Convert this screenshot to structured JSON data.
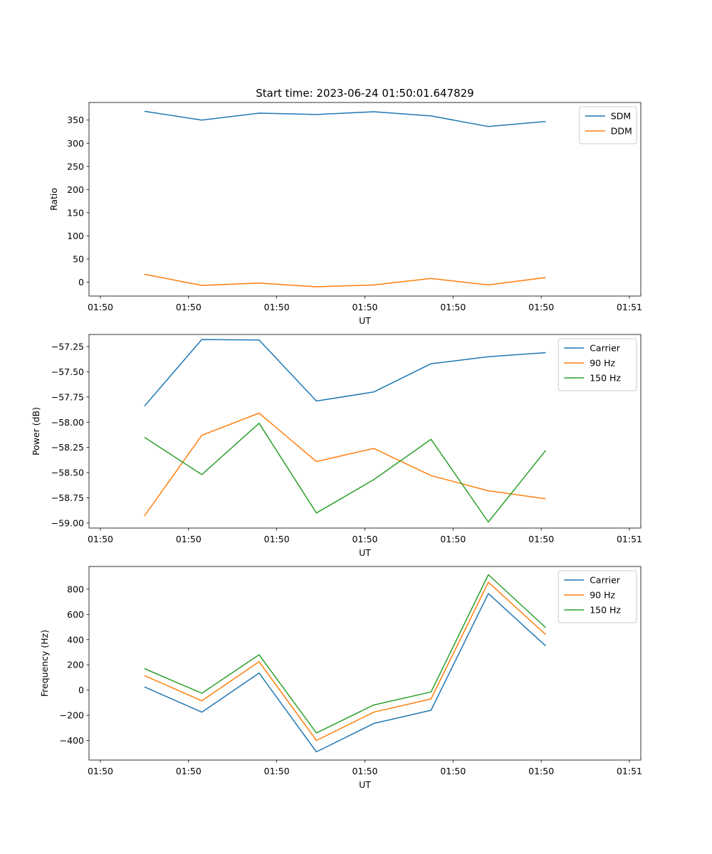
{
  "figure_title": "Start time: 2023-06-24 01:50:01.647829",
  "chart_data": [
    {
      "type": "line",
      "xlabel": "UT",
      "ylabel": "Ratio",
      "xticklabels": [
        "01:50",
        "01:50",
        "01:50",
        "01:50",
        "01:50",
        "01:50",
        "01:51"
      ],
      "xlim": [
        0,
        6
      ],
      "x": [
        0.5,
        1.15,
        1.8,
        2.45,
        3.1,
        3.75,
        4.4,
        5.05
      ],
      "ylim": [
        -30,
        388
      ],
      "yticks": [
        0,
        50,
        100,
        150,
        200,
        250,
        300,
        350
      ],
      "legend_position": "top-right",
      "series": [
        {
          "name": "SDM",
          "color": "#1f77b4",
          "values": [
            369,
            350,
            365,
            362,
            368,
            359,
            336,
            347
          ]
        },
        {
          "name": "DDM",
          "color": "#ff7f0e",
          "values": [
            17,
            -7,
            -2,
            -10,
            -6,
            8,
            -6,
            10
          ]
        }
      ]
    },
    {
      "type": "line",
      "xlabel": "UT",
      "ylabel": "Power (dB)",
      "xticklabels": [
        "01:50",
        "01:50",
        "01:50",
        "01:50",
        "01:50",
        "01:50",
        "01:51"
      ],
      "xlim": [
        0,
        6
      ],
      "x": [
        0.5,
        1.15,
        1.8,
        2.45,
        3.1,
        3.75,
        4.4,
        5.05
      ],
      "ylim": [
        -59.05,
        -57.13
      ],
      "yticks": [
        -59.0,
        -58.75,
        -58.5,
        -58.25,
        -58.0,
        -57.75,
        -57.5,
        -57.25
      ],
      "ytick_decimals": 2,
      "legend_position": "top-right",
      "series": [
        {
          "name": "Carrier",
          "color": "#1f77b4",
          "values": [
            -57.84,
            -57.18,
            -57.185,
            -57.79,
            -57.7,
            -57.42,
            -57.35,
            -57.31
          ]
        },
        {
          "name": "90 Hz",
          "color": "#ff7f0e",
          "values": [
            -58.93,
            -58.13,
            -57.91,
            -58.39,
            -58.26,
            -58.53,
            -58.68,
            -58.76
          ]
        },
        {
          "name": "150 Hz",
          "color": "#2ca02c",
          "values": [
            -58.15,
            -58.52,
            -58.01,
            -58.9,
            -58.57,
            -58.17,
            -58.99,
            -58.28
          ]
        }
      ]
    },
    {
      "type": "line",
      "xlabel": "UT",
      "ylabel": "Frequency (Hz)",
      "xticklabels": [
        "01:50",
        "01:50",
        "01:50",
        "01:50",
        "01:50",
        "01:50",
        "01:51"
      ],
      "xlim": [
        0,
        6
      ],
      "x": [
        0.5,
        1.15,
        1.8,
        2.45,
        3.1,
        3.75,
        4.4,
        5.05
      ],
      "ylim": [
        -555,
        980
      ],
      "yticks": [
        -400,
        -200,
        0,
        200,
        400,
        600,
        800
      ],
      "legend_position": "top-right",
      "series": [
        {
          "name": "Carrier",
          "color": "#1f77b4",
          "values": [
            25,
            -175,
            135,
            -490,
            -265,
            -160,
            765,
            350
          ]
        },
        {
          "name": "90 Hz",
          "color": "#ff7f0e",
          "values": [
            115,
            -85,
            225,
            -400,
            -175,
            -70,
            855,
            440
          ]
        },
        {
          "name": "150 Hz",
          "color": "#2ca02c",
          "values": [
            170,
            -25,
            280,
            -340,
            -118,
            -15,
            915,
            495
          ]
        }
      ]
    }
  ]
}
